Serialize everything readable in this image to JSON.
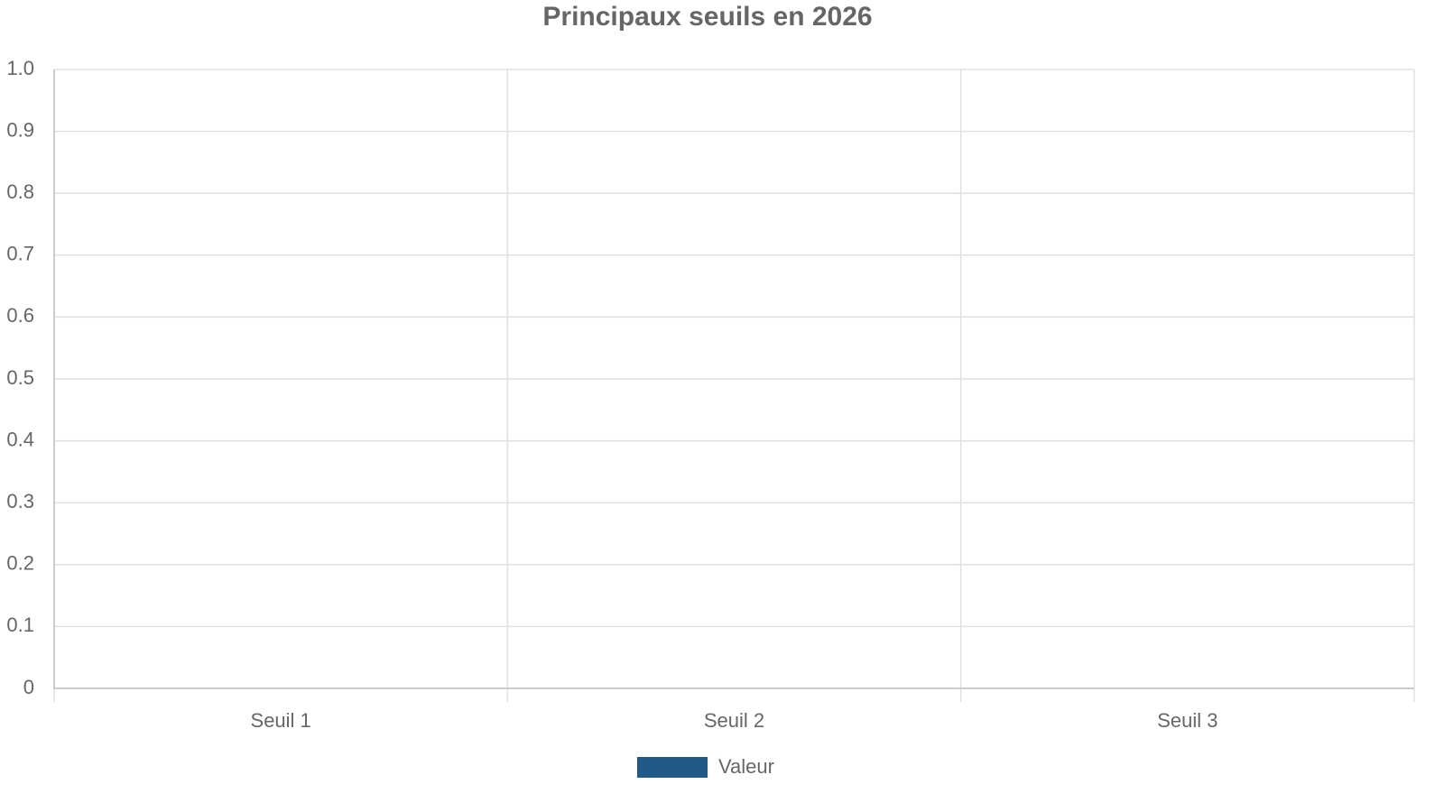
{
  "chart_data": {
    "type": "bar",
    "title": "Principaux seuils en 2026",
    "categories": [
      "Seuil 1",
      "Seuil 2",
      "Seuil 3"
    ],
    "series": [
      {
        "name": "Valeur",
        "color": "#215a86",
        "values": [
          0,
          0,
          0
        ]
      }
    ],
    "ylim": [
      0,
      1
    ],
    "yticks": [
      0,
      0.1,
      0.2,
      0.3,
      0.4,
      0.5,
      0.6,
      0.7,
      0.8,
      0.9,
      {
        "value": 1,
        "label": "1.0"
      }
    ],
    "grid": true,
    "legend": "bottom"
  }
}
